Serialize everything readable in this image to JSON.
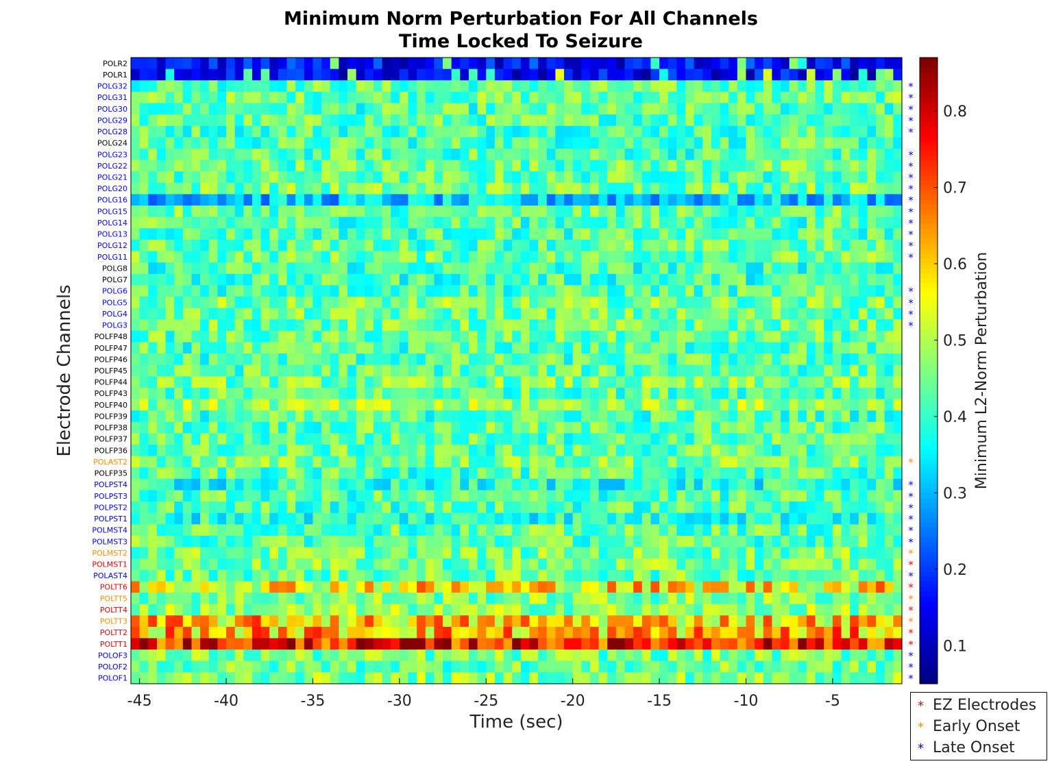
{
  "chart_data": {
    "type": "heatmap",
    "title": [
      "Minimum Norm Perturbation For All Channels",
      "Time Locked To Seizure"
    ],
    "xlabel": "Time (sec)",
    "ylabel": "Electrode Channels",
    "colorbar_label": "Minimum L2-Norm Perturbation",
    "colormap": "jet",
    "clim": [
      0.05,
      0.87
    ],
    "colorbar_ticks": [
      0.1,
      0.2,
      0.3,
      0.4,
      0.5,
      0.6,
      0.7,
      0.8
    ],
    "xlim": [
      -45.5,
      -1
    ],
    "x_step": 0.5,
    "xticks": [
      -45,
      -40,
      -35,
      -30,
      -25,
      -20,
      -15,
      -10,
      -5
    ],
    "channels": [
      {
        "name": "POLR2",
        "group": "none",
        "row_mean": 0.16
      },
      {
        "name": "POLR1",
        "group": "none",
        "row_mean": 0.14
      },
      {
        "name": "POLG32",
        "group": "late",
        "row_mean": 0.43
      },
      {
        "name": "POLG31",
        "group": "late",
        "row_mean": 0.44
      },
      {
        "name": "POLG30",
        "group": "late",
        "row_mean": 0.42
      },
      {
        "name": "POLG29",
        "group": "late",
        "row_mean": 0.43
      },
      {
        "name": "POLG28",
        "group": "late",
        "row_mean": 0.42
      },
      {
        "name": "POLG24",
        "group": "none",
        "row_mean": 0.42
      },
      {
        "name": "POLG23",
        "group": "late",
        "row_mean": 0.42
      },
      {
        "name": "POLG22",
        "group": "late",
        "row_mean": 0.44
      },
      {
        "name": "POLG21",
        "group": "late",
        "row_mean": 0.43
      },
      {
        "name": "POLG20",
        "group": "late",
        "row_mean": 0.45
      },
      {
        "name": "POLG16",
        "group": "late",
        "row_mean": 0.31
      },
      {
        "name": "POLG15",
        "group": "late",
        "row_mean": 0.43
      },
      {
        "name": "POLG14",
        "group": "late",
        "row_mean": 0.42
      },
      {
        "name": "POLG13",
        "group": "late",
        "row_mean": 0.42
      },
      {
        "name": "POLG12",
        "group": "late",
        "row_mean": 0.43
      },
      {
        "name": "POLG11",
        "group": "late",
        "row_mean": 0.44
      },
      {
        "name": "POLG8",
        "group": "none",
        "row_mean": 0.41
      },
      {
        "name": "POLG7",
        "group": "none",
        "row_mean": 0.41
      },
      {
        "name": "POLG6",
        "group": "late",
        "row_mean": 0.42
      },
      {
        "name": "POLG5",
        "group": "late",
        "row_mean": 0.45
      },
      {
        "name": "POLG4",
        "group": "late",
        "row_mean": 0.44
      },
      {
        "name": "POLG3",
        "group": "late",
        "row_mean": 0.44
      },
      {
        "name": "POLFP48",
        "group": "none",
        "row_mean": 0.43
      },
      {
        "name": "POLFP47",
        "group": "none",
        "row_mean": 0.42
      },
      {
        "name": "POLFP46",
        "group": "none",
        "row_mean": 0.42
      },
      {
        "name": "POLFP45",
        "group": "none",
        "row_mean": 0.43
      },
      {
        "name": "POLFP44",
        "group": "none",
        "row_mean": 0.45
      },
      {
        "name": "POLFP43",
        "group": "none",
        "row_mean": 0.43
      },
      {
        "name": "POLFP40",
        "group": "none",
        "row_mean": 0.48
      },
      {
        "name": "POLFP39",
        "group": "none",
        "row_mean": 0.42
      },
      {
        "name": "POLFP38",
        "group": "none",
        "row_mean": 0.43
      },
      {
        "name": "POLFP37",
        "group": "none",
        "row_mean": 0.43
      },
      {
        "name": "POLFP36",
        "group": "none",
        "row_mean": 0.43
      },
      {
        "name": "POLAST2",
        "group": "early",
        "row_mean": 0.45
      },
      {
        "name": "POLFP35",
        "group": "none",
        "row_mean": 0.42
      },
      {
        "name": "POLPST4",
        "group": "late",
        "row_mean": 0.38
      },
      {
        "name": "POLPST3",
        "group": "late",
        "row_mean": 0.42
      },
      {
        "name": "POLPST2",
        "group": "late",
        "row_mean": 0.42
      },
      {
        "name": "POLPST1",
        "group": "late",
        "row_mean": 0.39
      },
      {
        "name": "POLMST4",
        "group": "late",
        "row_mean": 0.43
      },
      {
        "name": "POLMST3",
        "group": "late",
        "row_mean": 0.43
      },
      {
        "name": "POLMST2",
        "group": "early",
        "row_mean": 0.45
      },
      {
        "name": "POLMST1",
        "group": "ez",
        "row_mean": 0.45
      },
      {
        "name": "POLAST4",
        "group": "late",
        "row_mean": 0.44
      },
      {
        "name": "POLTT6",
        "group": "ez",
        "row_mean": 0.58
      },
      {
        "name": "POLTT5",
        "group": "early",
        "row_mean": 0.46
      },
      {
        "name": "POLTT4",
        "group": "ez",
        "row_mean": 0.47
      },
      {
        "name": "POLTT3",
        "group": "early",
        "row_mean": 0.6
      },
      {
        "name": "POLTT2",
        "group": "ez",
        "row_mean": 0.62
      },
      {
        "name": "POLTT1",
        "group": "ez",
        "row_mean": 0.76
      },
      {
        "name": "POLOF3",
        "group": "late",
        "row_mean": 0.45
      },
      {
        "name": "POLOF2",
        "group": "late",
        "row_mean": 0.44
      },
      {
        "name": "POLOF1",
        "group": "late",
        "row_mean": 0.46
      }
    ],
    "legend": [
      {
        "label": "EZ Electrodes",
        "group": "ez"
      },
      {
        "label": "Early Onset",
        "group": "early"
      },
      {
        "label": "Late Onset",
        "group": "late"
      }
    ],
    "legend_placement": "bottom-right",
    "marker": "*"
  },
  "colors": {
    "ez": "#ff0000",
    "early": "#ff8c00",
    "late": "#0000ff",
    "none": "#000000"
  }
}
